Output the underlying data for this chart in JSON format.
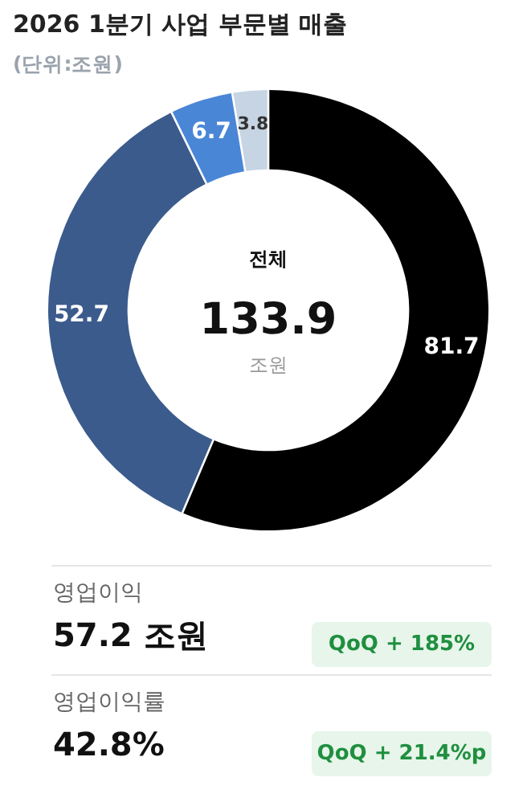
{
  "chart_data": [
    {
      "type": "donut",
      "title": "2026 1분기 사업 부문별 매출",
      "subtitle": "(단위:조원)",
      "categories": [
        null,
        null,
        null,
        null
      ],
      "values": [
        81.7,
        52.7,
        6.7,
        3.8
      ],
      "colors": [
        "#000000",
        "#3b5b8c",
        "#4a86d6",
        "#c6d4e4"
      ],
      "data_labels": true,
      "annotations": [
        "전체",
        "133.9",
        "조원"
      ]
    },
    {
      "type": "other",
      "annotations": [
        "영업이익",
        "57.2 조원",
        "QoQ + 185%",
        "영업이익률",
        "42.8%",
        "QoQ + 21.4%p"
      ]
    }
  ]
}
